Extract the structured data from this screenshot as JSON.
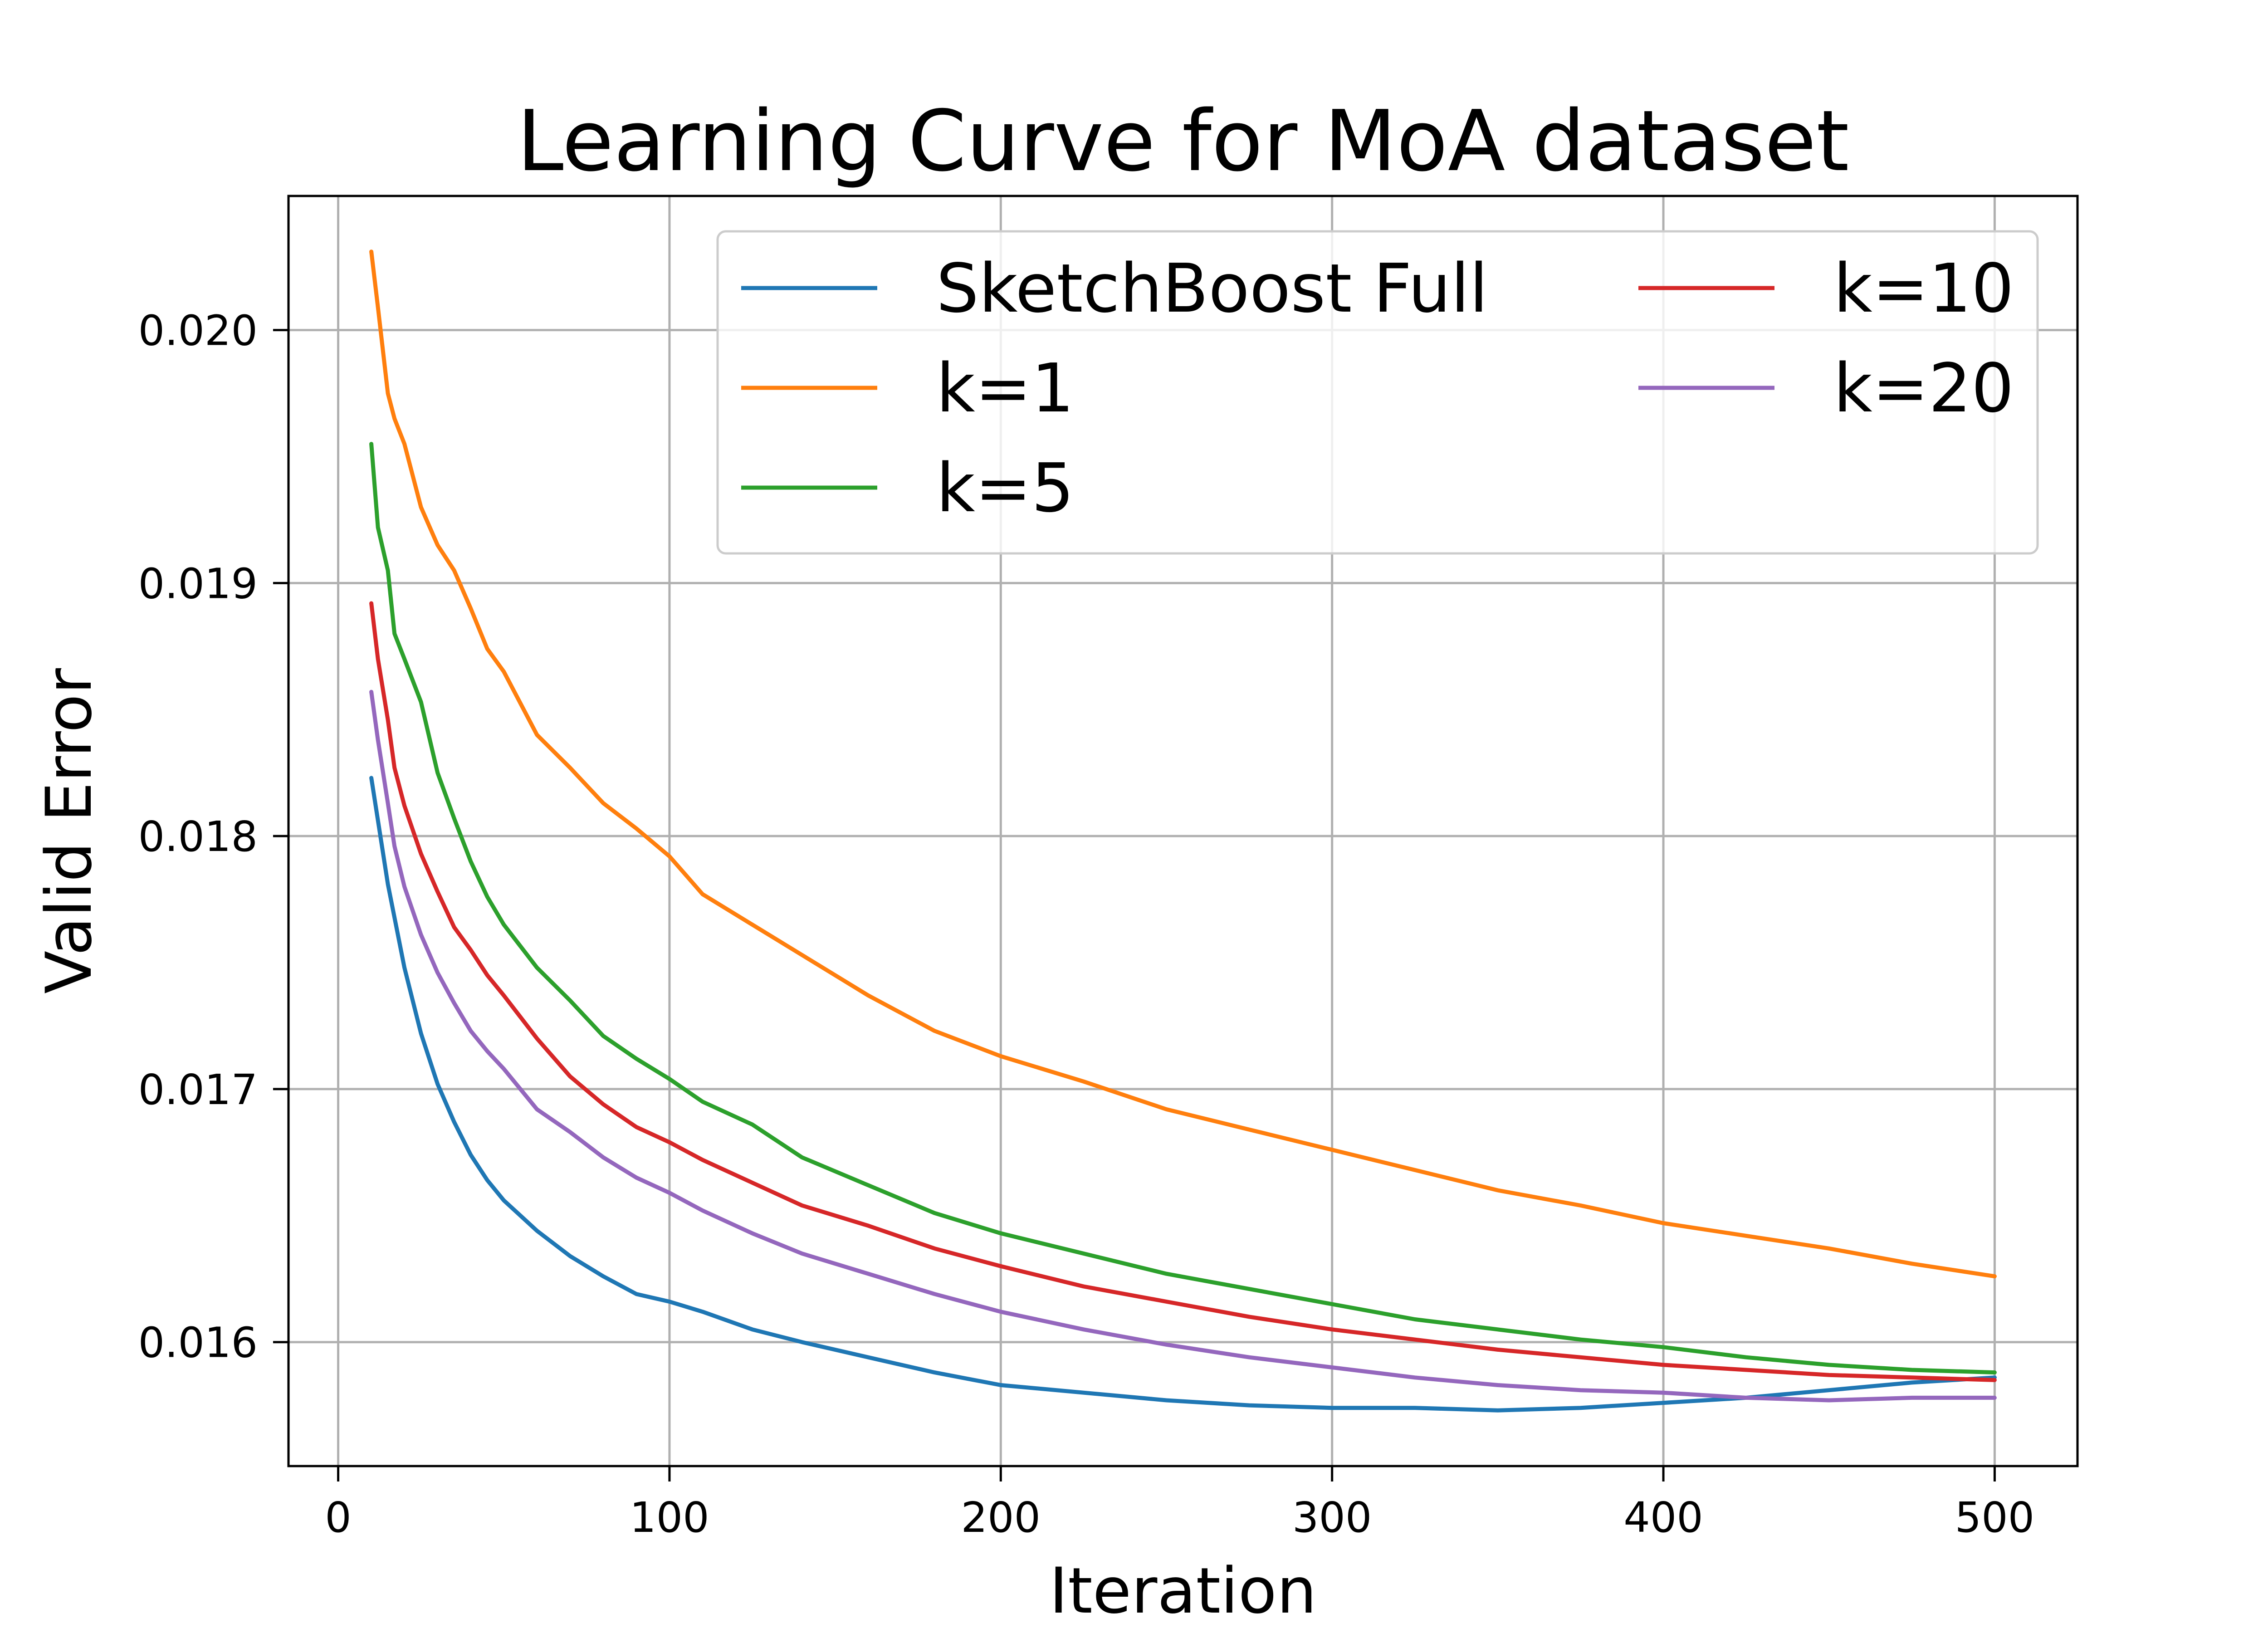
{
  "chart_data": {
    "type": "line",
    "title": "Learning Curve for MoA dataset",
    "xlabel": "Iteration",
    "ylabel": "Valid Error",
    "xlim": [
      -15,
      525
    ],
    "ylim": [
      0.01551,
      0.02053
    ],
    "x_ticks": [
      0,
      100,
      200,
      300,
      400,
      500
    ],
    "x_tick_labels": [
      "0",
      "100",
      "200",
      "300",
      "400",
      "500"
    ],
    "y_ticks": [
      0.016,
      0.017,
      0.018,
      0.019,
      0.02
    ],
    "y_tick_labels": [
      "0.016",
      "0.017",
      "0.018",
      "0.019",
      "0.020"
    ],
    "grid": true,
    "legend": {
      "placement": "upper right",
      "columns": 2
    },
    "series": [
      {
        "name": "SketchBoost Full",
        "color": "#1f77b4",
        "x": [
          10,
          15,
          20,
          25,
          30,
          35,
          40,
          45,
          50,
          60,
          70,
          80,
          90,
          100,
          110,
          125,
          140,
          160,
          180,
          200,
          225,
          250,
          275,
          300,
          325,
          350,
          375,
          400,
          425,
          450,
          475,
          500
        ],
        "y": [
          0.01823,
          0.01781,
          0.01748,
          0.01722,
          0.01702,
          0.01687,
          0.01674,
          0.01664,
          0.01656,
          0.01644,
          0.01634,
          0.01626,
          0.01619,
          0.01616,
          0.01612,
          0.01605,
          0.016,
          0.01594,
          0.01588,
          0.01583,
          0.0158,
          0.01577,
          0.01575,
          0.01574,
          0.01574,
          0.01573,
          0.01574,
          0.01576,
          0.01578,
          0.01581,
          0.01584,
          0.01586
        ]
      },
      {
        "name": "k=1",
        "color": "#ff7f0e",
        "x": [
          10,
          12,
          15,
          17,
          20,
          25,
          30,
          35,
          40,
          45,
          50,
          60,
          70,
          80,
          90,
          100,
          110,
          125,
          140,
          160,
          180,
          200,
          225,
          250,
          275,
          300,
          325,
          350,
          375,
          400,
          425,
          450,
          475,
          500
        ],
        "y": [
          0.02031,
          0.02009,
          0.01975,
          0.01965,
          0.01955,
          0.0193,
          0.01915,
          0.01905,
          0.0189,
          0.01874,
          0.01865,
          0.0184,
          0.01827,
          0.01813,
          0.01803,
          0.01792,
          0.01777,
          0.01765,
          0.01753,
          0.01737,
          0.01723,
          0.01713,
          0.01703,
          0.01692,
          0.01684,
          0.01676,
          0.01668,
          0.0166,
          0.01654,
          0.01647,
          0.01642,
          0.01637,
          0.01631,
          0.01626
        ]
      },
      {
        "name": "k=5",
        "color": "#2ca02c",
        "x": [
          10,
          12,
          15,
          17,
          20,
          25,
          30,
          35,
          40,
          45,
          50,
          60,
          70,
          80,
          90,
          100,
          110,
          125,
          140,
          160,
          180,
          200,
          225,
          250,
          275,
          300,
          325,
          350,
          375,
          400,
          425,
          450,
          475,
          500
        ],
        "y": [
          0.01955,
          0.01922,
          0.01905,
          0.0188,
          0.0187,
          0.01853,
          0.01825,
          0.01807,
          0.0179,
          0.01776,
          0.01765,
          0.01748,
          0.01735,
          0.01721,
          0.01712,
          0.01704,
          0.01695,
          0.01686,
          0.01673,
          0.01662,
          0.01651,
          0.01643,
          0.01635,
          0.01627,
          0.01621,
          0.01615,
          0.01609,
          0.01605,
          0.01601,
          0.01598,
          0.01594,
          0.01591,
          0.01589,
          0.01588
        ]
      },
      {
        "name": "k=10",
        "color": "#d62728",
        "x": [
          10,
          12,
          15,
          17,
          20,
          25,
          30,
          35,
          40,
          45,
          50,
          60,
          70,
          80,
          90,
          100,
          110,
          125,
          140,
          160,
          180,
          200,
          225,
          250,
          275,
          300,
          325,
          350,
          375,
          400,
          425,
          450,
          475,
          500
        ],
        "y": [
          0.01892,
          0.0187,
          0.01846,
          0.01827,
          0.01812,
          0.01793,
          0.01778,
          0.01764,
          0.01755,
          0.01745,
          0.01737,
          0.0172,
          0.01705,
          0.01694,
          0.01685,
          0.01679,
          0.01672,
          0.01663,
          0.01654,
          0.01646,
          0.01637,
          0.0163,
          0.01622,
          0.01616,
          0.0161,
          0.01605,
          0.01601,
          0.01597,
          0.01594,
          0.01591,
          0.01589,
          0.01587,
          0.01586,
          0.01585
        ]
      },
      {
        "name": "k=20",
        "color": "#9467bd",
        "x": [
          10,
          12,
          15,
          17,
          20,
          25,
          30,
          35,
          40,
          45,
          50,
          60,
          70,
          80,
          90,
          100,
          110,
          125,
          140,
          160,
          180,
          200,
          225,
          250,
          275,
          300,
          325,
          350,
          375,
          400,
          425,
          450,
          475,
          500
        ],
        "y": [
          0.01857,
          0.01838,
          0.01813,
          0.01796,
          0.0178,
          0.01761,
          0.01746,
          0.01734,
          0.01723,
          0.01715,
          0.01708,
          0.01692,
          0.01683,
          0.01673,
          0.01665,
          0.01659,
          0.01652,
          0.01643,
          0.01635,
          0.01627,
          0.01619,
          0.01612,
          0.01605,
          0.01599,
          0.01594,
          0.0159,
          0.01586,
          0.01583,
          0.01581,
          0.0158,
          0.01578,
          0.01577,
          0.01578,
          0.01578
        ]
      }
    ]
  }
}
